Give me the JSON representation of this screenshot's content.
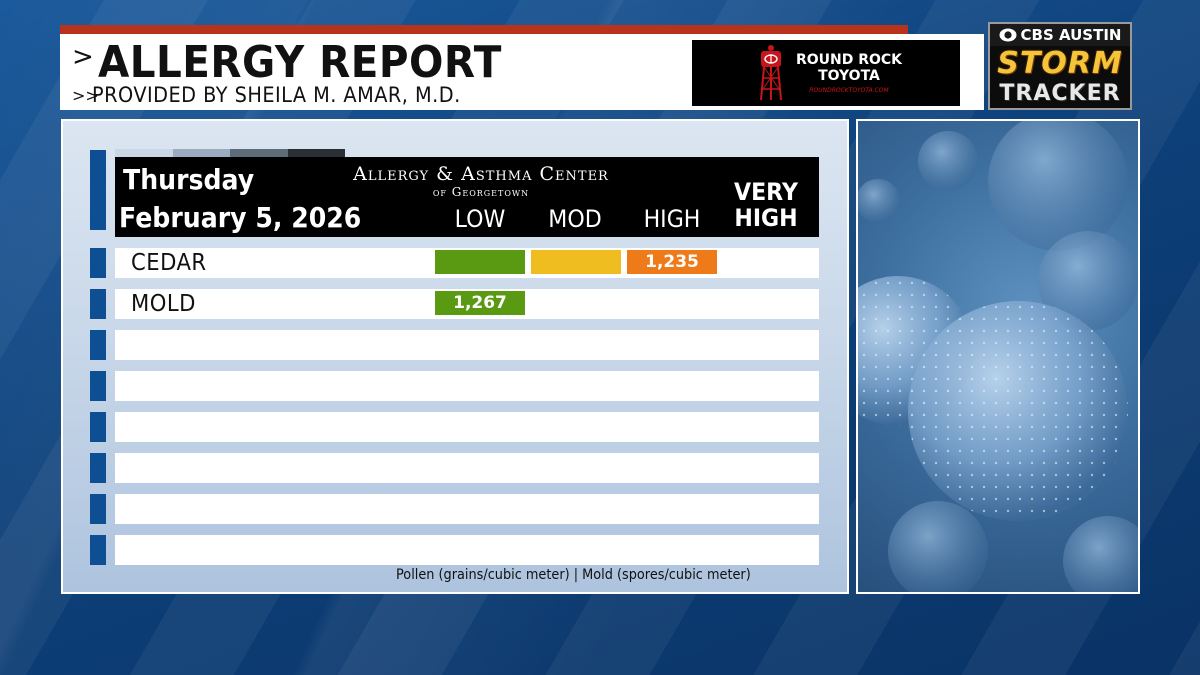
{
  "header": {
    "title": "ALLERGY REPORT",
    "subtitle": "PROVIDED BY SHEILA M. AMAR, M.D.",
    "title_chevron": ">",
    "subtitle_chevron": ">>"
  },
  "sponsor": {
    "name_line1": "ROUND ROCK",
    "name_line2": "TOYOTA",
    "url": "ROUNDROCKTOYOTA.COM",
    "icon": "water-tower-icon"
  },
  "station": {
    "top": "CBS AUSTIN",
    "storm": "STORM",
    "tracker": "TRACKER"
  },
  "report": {
    "day": "Thursday",
    "date": "February 5, 2026",
    "center_name": "Allergy & Asthma Center",
    "center_sub": "of Georgetown",
    "levels": {
      "low": "LOW",
      "mod": "MOD",
      "high": "HIGH",
      "very_high_1": "VERY",
      "very_high_2": "HIGH"
    },
    "rows": [
      {
        "name": "CEDAR",
        "level": "HIGH",
        "value": "1,235"
      },
      {
        "name": "MOLD",
        "level": "LOW",
        "value": "1,267"
      }
    ],
    "footnote": "Pollen (grains/cubic meter) | Mold (spores/cubic meter)"
  },
  "colors": {
    "low": "#5a9a12",
    "mod": "#f0bd20",
    "high": "#ee7a1a",
    "header_red": "#b8321c",
    "tab_blue": "#0e4f93"
  }
}
